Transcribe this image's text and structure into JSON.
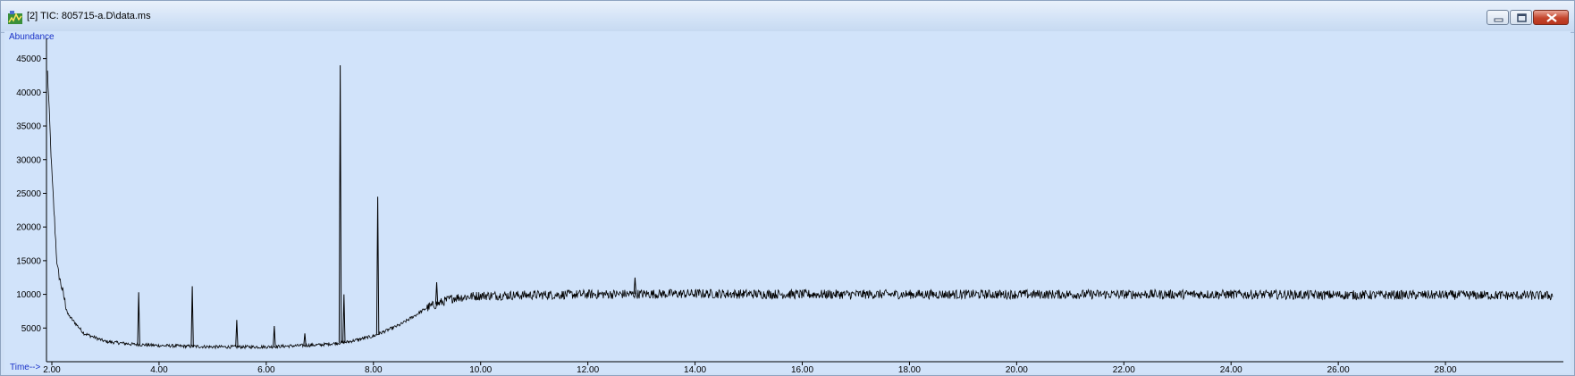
{
  "window": {
    "title": "[2] TIC: 805715-a.D\\data.ms",
    "buttons": [
      "minimize",
      "maximize",
      "close"
    ]
  },
  "icons": {
    "app": "chromatogram-app-icon",
    "minimize": "minimize-icon",
    "maximize": "maximize-icon",
    "close": "close-icon"
  },
  "colors": {
    "plot_background": "#d1e3fa",
    "trace": "#000000",
    "axis_label": "#1a32c8",
    "close_button": "#c4452d"
  },
  "chart_data": {
    "type": "line",
    "ylabel": "Abundance",
    "xlabel": "Time-->",
    "xlim": [
      1.9,
      30.2
    ],
    "ylim": [
      0,
      48000
    ],
    "x_ticks": [
      "2.00",
      "4.00",
      "6.00",
      "8.00",
      "10.00",
      "12.00",
      "14.00",
      "16.00",
      "18.00",
      "20.00",
      "22.00",
      "24.00",
      "26.00",
      "28.00"
    ],
    "y_ticks": [
      "5000",
      "10000",
      "15000",
      "20000",
      "25000",
      "30000",
      "35000",
      "40000",
      "45000"
    ],
    "grid": false,
    "legend": "none",
    "baseline": {
      "x": [
        1.92,
        2.0,
        2.1,
        2.3,
        2.6,
        3.0,
        3.5,
        4.0,
        5.0,
        6.0,
        7.0,
        7.5,
        8.0,
        8.5,
        9.0,
        9.5,
        10.0,
        12.0,
        14.0,
        16.0,
        18.0,
        20.0,
        22.0,
        24.0,
        26.0,
        28.0,
        30.0
      ],
      "y": [
        43000,
        28000,
        14000,
        7000,
        4200,
        3000,
        2600,
        2400,
        2200,
        2200,
        2500,
        2900,
        3800,
        5500,
        8000,
        9500,
        9800,
        10000,
        10100,
        10000,
        10000,
        10000,
        10000,
        10000,
        9900,
        9900,
        9800
      ]
    },
    "noise_amplitude": 700,
    "peaks": [
      {
        "x": 3.62,
        "y": 10300
      },
      {
        "x": 4.62,
        "y": 11200
      },
      {
        "x": 5.45,
        "y": 6200
      },
      {
        "x": 6.15,
        "y": 5300
      },
      {
        "x": 6.72,
        "y": 4200
      },
      {
        "x": 7.38,
        "y": 44000
      },
      {
        "x": 7.45,
        "y": 10000
      },
      {
        "x": 8.08,
        "y": 24500
      },
      {
        "x": 9.18,
        "y": 11800
      },
      {
        "x": 12.88,
        "y": 12500
      }
    ]
  }
}
